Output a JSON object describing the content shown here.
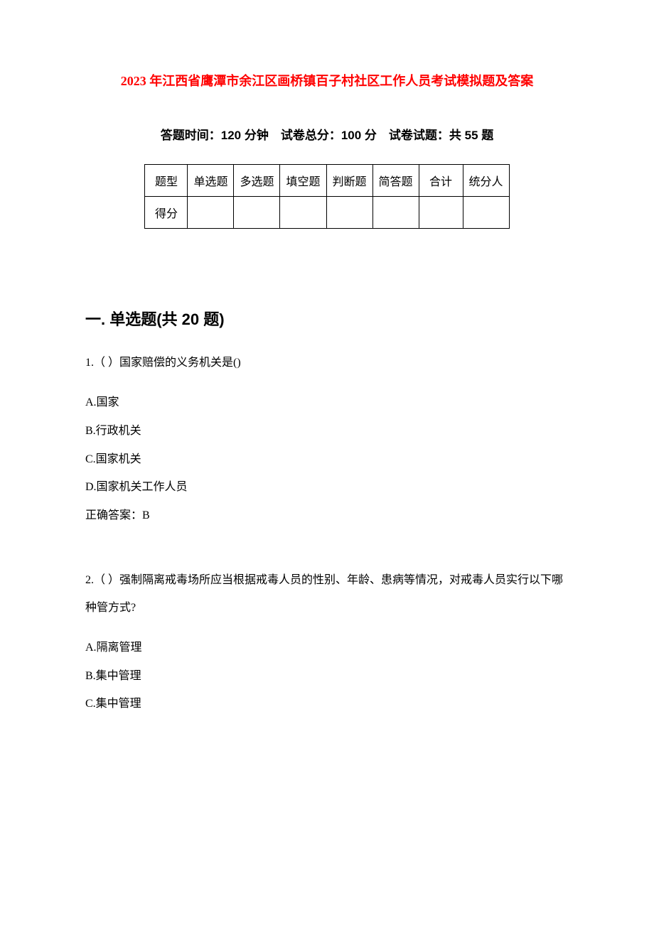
{
  "title": "2023 年江西省鹰潭市余江区画桥镇百子村社区工作人员考试模拟题及答案",
  "exam_info": "答题时间：120 分钟　试卷总分：100 分　试卷试题：共 55 题",
  "score_table": {
    "headers": [
      "题型",
      "单选题",
      "多选题",
      "填空题",
      "判断题",
      "简答题",
      "合计",
      "统分人"
    ],
    "row_label": "得分"
  },
  "sections": [
    {
      "heading": "一. 单选题(共 20 题)",
      "questions": [
        {
          "number": "1.（ ）国家赔偿的义务机关是()",
          "options": [
            "A.国家",
            "B.行政机关",
            "C.国家机关",
            "D.国家机关工作人员"
          ],
          "answer": "正确答案：B"
        },
        {
          "number": "2.（ ）强制隔离戒毒场所应当根据戒毒人员的性别、年龄、患病等情况，对戒毒人员实行以下哪种管方式?",
          "options": [
            "A.隔离管理",
            "B.集中管理",
            "C.集中管理"
          ],
          "answer": ""
        }
      ]
    }
  ]
}
